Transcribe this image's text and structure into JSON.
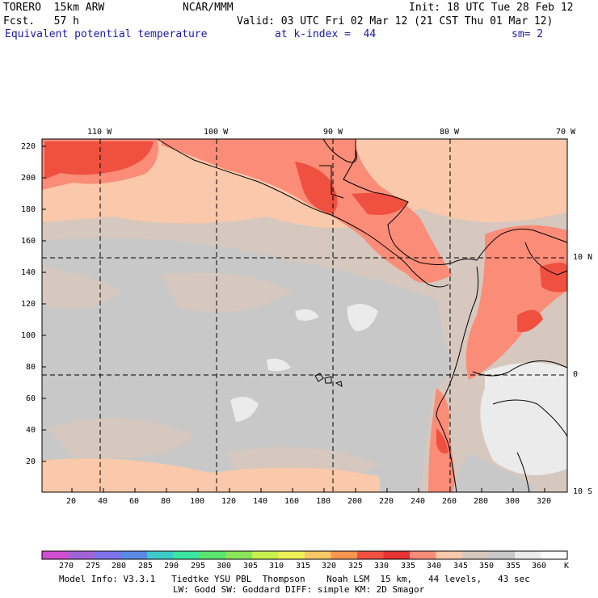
{
  "header": {
    "model": "TORERO  15km ARW",
    "org": "NCAR/MMM",
    "init": "Init: 18 UTC Tue 28 Feb 12",
    "fcst": "Fcst.   57 h",
    "valid": "Valid: 03 UTC Fri 02 Mar 12 (21 CST Thu 01 Mar 12)",
    "field": "Equivalent potential temperature",
    "level": "at k-index =  44",
    "smooth": "sm= 2"
  },
  "map": {
    "lon_labels": [
      "110 W",
      "100 W",
      "90 W",
      "80 W",
      "70 W"
    ],
    "lat_labels": [
      "10 N",
      "0",
      "10 S"
    ],
    "y_ticks": [
      "220",
      "200",
      "180",
      "160",
      "140",
      "120",
      "100",
      "80",
      "60",
      "40",
      "20"
    ],
    "x_ticks": [
      "20",
      "40",
      "60",
      "80",
      "100",
      "120",
      "140",
      "160",
      "180",
      "200",
      "220",
      "240",
      "260",
      "280",
      "300",
      "320"
    ]
  },
  "colorbar": {
    "labels": [
      "270",
      "275",
      "280",
      "285",
      "290",
      "295",
      "300",
      "305",
      "310",
      "315",
      "320",
      "325",
      "330",
      "335",
      "340",
      "345",
      "350",
      "355",
      "360"
    ],
    "unit": "K",
    "colors": [
      "#d24fd2",
      "#a063d8",
      "#7d73ec",
      "#5a8ae6",
      "#3ccbc8",
      "#3ce6a0",
      "#5ae66e",
      "#8ce65a",
      "#c8f050",
      "#f0f05a",
      "#fac864",
      "#fa9650",
      "#f05040",
      "#e63232",
      "#fa8c78",
      "#fac8aa",
      "#d6c8be",
      "#c8c8c8",
      "#ebebeb",
      "#ffffff"
    ]
  },
  "footer": {
    "line1": "Model Info: V3.3.1   Tiedtke YSU PBL  Thompson    Noah LSM  15 km,   44 levels,   43 sec",
    "line2": "LW: Godd SW: Goddard DIFF: simple KM: 2D Smagor"
  }
}
